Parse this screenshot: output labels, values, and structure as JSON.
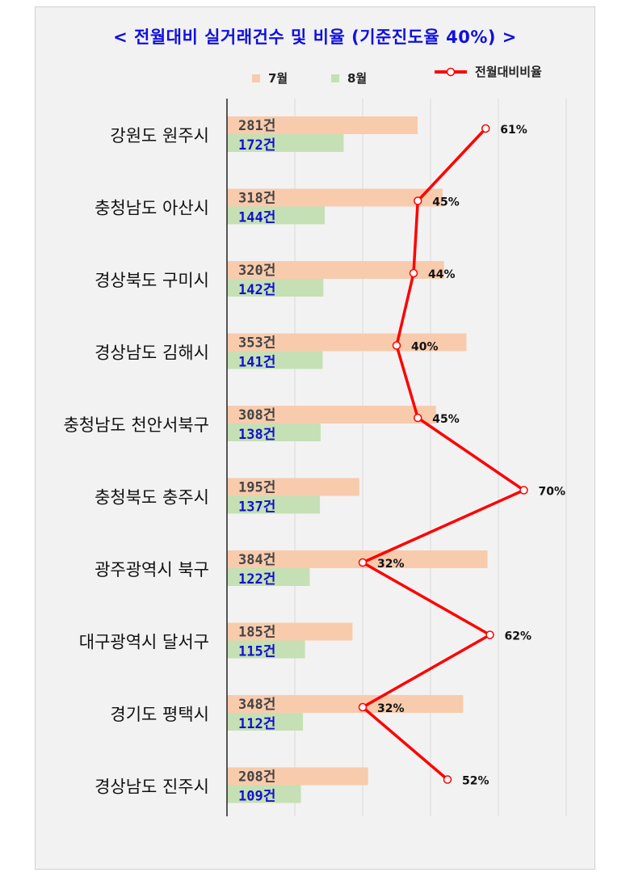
{
  "chart_data": {
    "type": "bar",
    "title": "< 전월대비 실거래건수 및 비율 (기준진도율 40%) >",
    "categories": [
      "강원도 원주시",
      "충청남도 아산시",
      "경상북도 구미시",
      "경상남도 김해시",
      "충청남도 천안서북구",
      "충청북도 충주시",
      "광주광역시 북구",
      "대구광역시 달서구",
      "경기도 평택시",
      "경상남도 진주시"
    ],
    "series": [
      {
        "name": "7월",
        "values": [
          281,
          318,
          320,
          353,
          308,
          195,
          384,
          185,
          348,
          208
        ],
        "color": "#f8cbad",
        "labels": [
          "281건",
          "318건",
          "320건",
          "353건",
          "308건",
          "195건",
          "384건",
          "185건",
          "348건",
          "208건"
        ]
      },
      {
        "name": "8월",
        "values": [
          172,
          144,
          142,
          141,
          138,
          137,
          122,
          115,
          112,
          109
        ],
        "color": "#c5e0b4",
        "labels": [
          "172건",
          "144건",
          "142건",
          "141건",
          "138건",
          "137건",
          "122건",
          "115건",
          "112건",
          "109건"
        ]
      },
      {
        "name": "전월대비비율",
        "type": "line",
        "values": [
          61,
          45,
          44,
          40,
          45,
          70,
          32,
          62,
          32,
          52
        ],
        "color": "#ff0000",
        "labels": [
          "61%",
          "45%",
          "44%",
          "40%",
          "45%",
          "70%",
          "32%",
          "62%",
          "32%",
          "52%"
        ]
      }
    ],
    "bar_axis_range": [
      0,
      500
    ],
    "line_axis_range": [
      0,
      80
    ],
    "grid": true,
    "legend_position": "top"
  }
}
